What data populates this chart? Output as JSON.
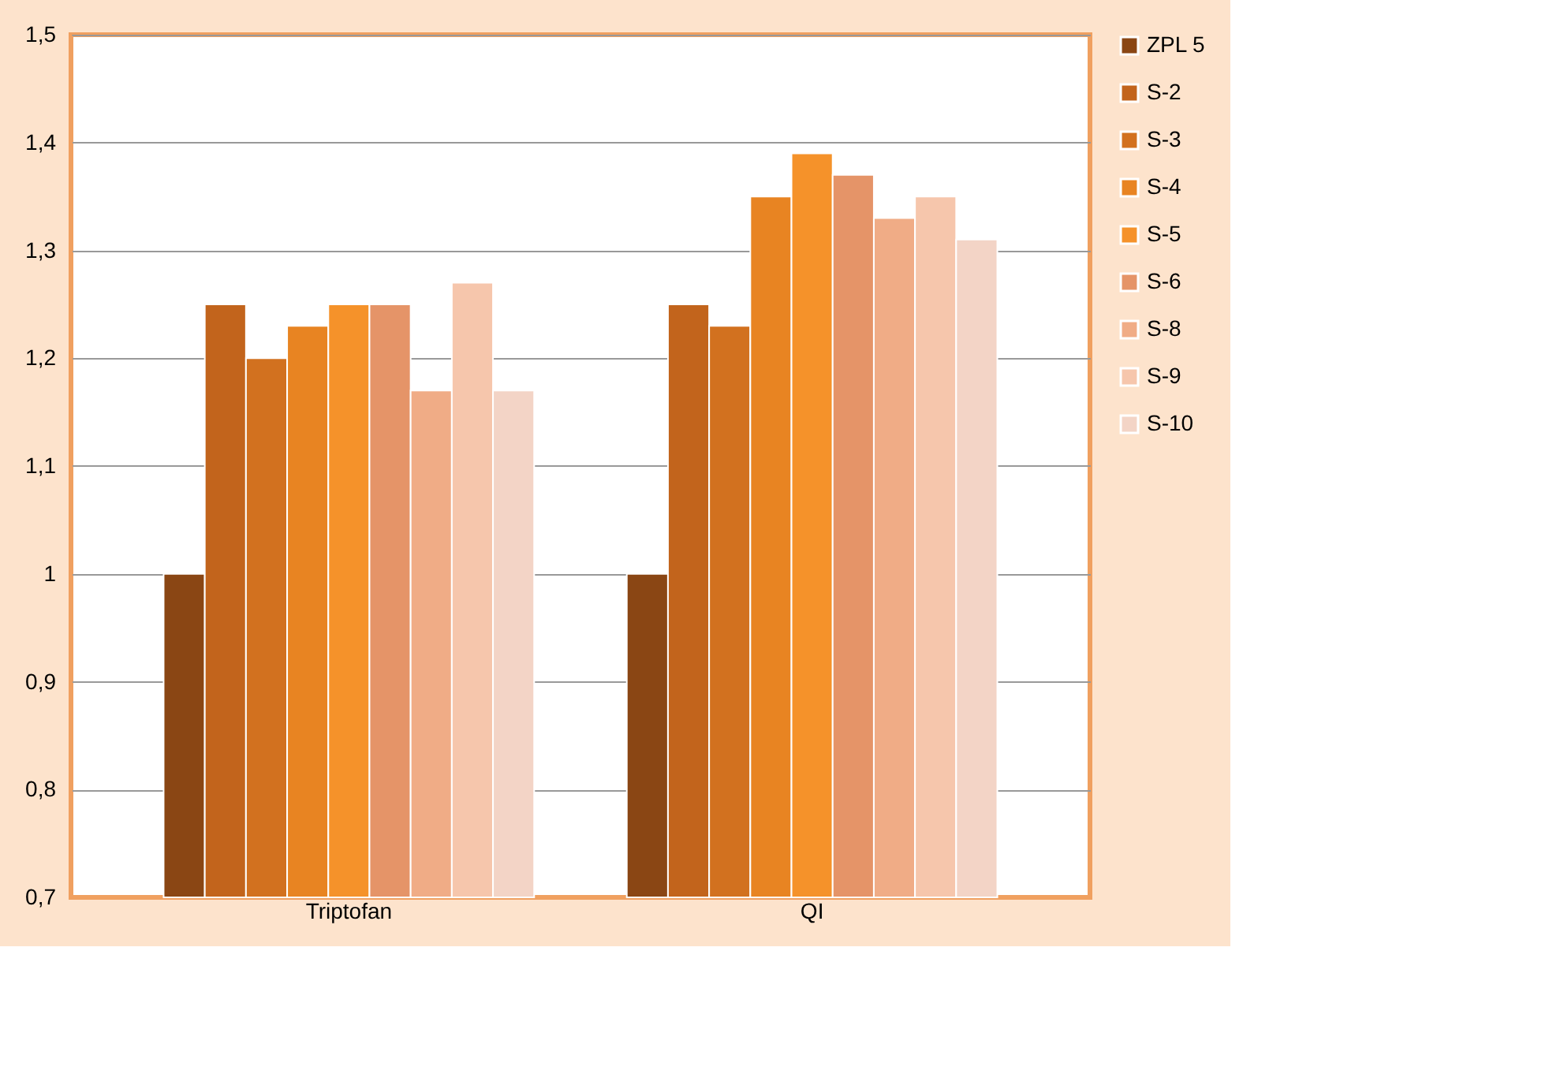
{
  "chart_data": {
    "type": "bar",
    "categories": [
      "Triptofan",
      "QI"
    ],
    "series": [
      {
        "name": "ZPL 5",
        "color": "#8a4614",
        "values": [
          1.0,
          1.0
        ]
      },
      {
        "name": "S-2",
        "color": "#c2641c",
        "values": [
          1.25,
          1.25
        ]
      },
      {
        "name": "S-3",
        "color": "#d2711f",
        "values": [
          1.2,
          1.23
        ]
      },
      {
        "name": "S-4",
        "color": "#e88422",
        "values": [
          1.23,
          1.35
        ]
      },
      {
        "name": "S-5",
        "color": "#f5922a",
        "values": [
          1.25,
          1.39
        ]
      },
      {
        "name": "S-6",
        "color": "#e59468",
        "values": [
          1.25,
          1.37
        ]
      },
      {
        "name": "S-8",
        "color": "#f0ac86",
        "values": [
          1.17,
          1.33
        ]
      },
      {
        "name": "S-9",
        "color": "#f6c6ac",
        "values": [
          1.27,
          1.35
        ]
      },
      {
        "name": "S-10",
        "color": "#f3d4c6",
        "values": [
          1.17,
          1.31
        ]
      }
    ],
    "ylim": [
      0.7,
      1.5
    ],
    "yticks": [
      {
        "value": 0.7,
        "label": "0,7"
      },
      {
        "value": 0.8,
        "label": "0,8"
      },
      {
        "value": 0.9,
        "label": "0,9"
      },
      {
        "value": 1.0,
        "label": "1"
      },
      {
        "value": 1.1,
        "label": "1,1"
      },
      {
        "value": 1.2,
        "label": "1,2"
      },
      {
        "value": 1.3,
        "label": "1,3"
      },
      {
        "value": 1.4,
        "label": "1,4"
      },
      {
        "value": 1.5,
        "label": "1,5"
      }
    ],
    "grid": "y",
    "legend": "right"
  }
}
